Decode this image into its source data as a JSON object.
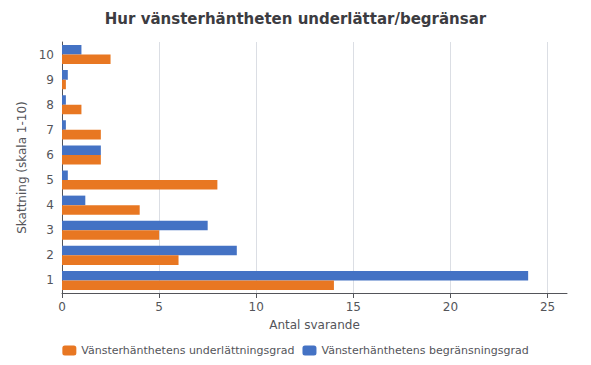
{
  "chart_data": {
    "type": "bar",
    "orientation": "horizontal",
    "title": "Hur vänsterhäntheten underlättar/begränsar",
    "xlabel": "Antal svarande",
    "ylabel": "Skattning (skala 1-10)",
    "categories": [
      1,
      2,
      3,
      4,
      5,
      6,
      7,
      8,
      9,
      10
    ],
    "series": [
      {
        "name": "Vänsterhänthetens underlättningsgrad",
        "color": "#E87722",
        "values": [
          14,
          6,
          5,
          4,
          8,
          2,
          2,
          1,
          0.2,
          2.5
        ]
      },
      {
        "name": "Vänsterhänthetens begränsningsgrad",
        "color": "#4472C4",
        "values": [
          24,
          9,
          7.5,
          1.2,
          0.3,
          2,
          0.2,
          0.2,
          0.3,
          1
        ]
      }
    ],
    "xlim": [
      0,
      26
    ],
    "xticks": [
      0,
      5,
      10,
      15,
      20,
      25
    ],
    "grid": true,
    "legend": "bottom"
  }
}
